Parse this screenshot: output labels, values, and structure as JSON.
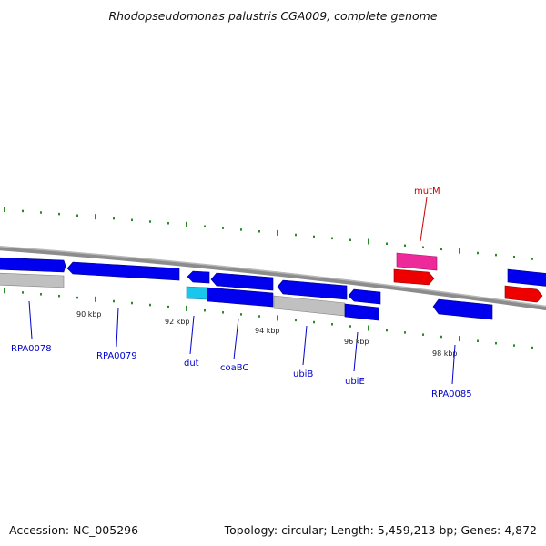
{
  "title": "Rhodopseudomonas palustris CGA009, complete genome",
  "footer": {
    "accession": "Accession: NC_005296",
    "summary": "Topology: circular; Length: 5,459,213 bp; Genes: 4,872"
  },
  "colors": {
    "background": "#ffffff",
    "backbone": "#8c8c8c",
    "tick": "#2a8a2a",
    "gene_cds": "#0000ee",
    "gene_label": "#0000cc",
    "gene_label_red": "#cc0000",
    "gene_red": "#ee0000",
    "gene_pink": "#ee2a9a",
    "gene_cyan": "#18c6ee",
    "gene_gray": "#c0c0c0"
  },
  "ticks": [
    {
      "label": "90 kbp"
    },
    {
      "label": "92 kbp"
    },
    {
      "label": "94 kbp"
    },
    {
      "label": "96 kbp"
    },
    {
      "label": "98 kbp"
    }
  ],
  "gene_labels": [
    {
      "name": "RPA0078",
      "color": "blue"
    },
    {
      "name": "RPA0079",
      "color": "blue"
    },
    {
      "name": "dut",
      "color": "blue"
    },
    {
      "name": "coaBC",
      "color": "blue"
    },
    {
      "name": "ubiB",
      "color": "blue"
    },
    {
      "name": "ubiE",
      "color": "blue"
    },
    {
      "name": "RPA0085",
      "color": "blue"
    },
    {
      "name": "mutM",
      "color": "red"
    }
  ]
}
